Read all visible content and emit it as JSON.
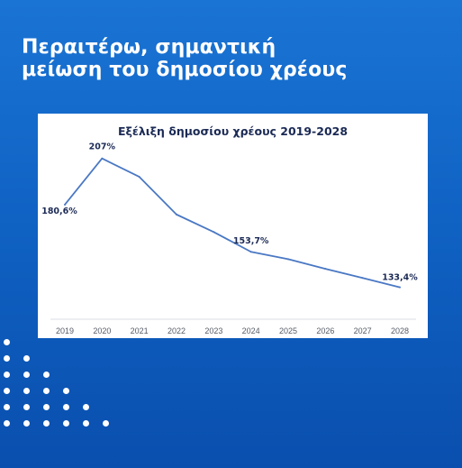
{
  "headline": {
    "line1": "Περαιτέρω, σημαντική",
    "line2": "μείωση του δημοσίου χρέους"
  },
  "colors": {
    "background": "#1565c8",
    "card": "#ffffff",
    "line": "#4a78c4",
    "text_dark": "#1b2a55",
    "decor_dots": "#ffffff"
  },
  "chart_data": {
    "type": "line",
    "title": "Εξέλιξη δημοσίου χρέους 2019-2028",
    "xlabel": "",
    "ylabel": "",
    "x": [
      "2019",
      "2020",
      "2021",
      "2022",
      "2023",
      "2024",
      "2025",
      "2026",
      "2027",
      "2028"
    ],
    "values": [
      180.6,
      207,
      196.5,
      175,
      165,
      153.7,
      149.5,
      144,
      138.8,
      133.4
    ],
    "data_labels": [
      {
        "index": 0,
        "text": "180,6%"
      },
      {
        "index": 1,
        "text": "207%"
      },
      {
        "index": 5,
        "text": "153,7%"
      },
      {
        "index": 9,
        "text": "133,4%"
      }
    ],
    "ylim": [
      125,
      212
    ],
    "grid": false,
    "legend": "none"
  }
}
